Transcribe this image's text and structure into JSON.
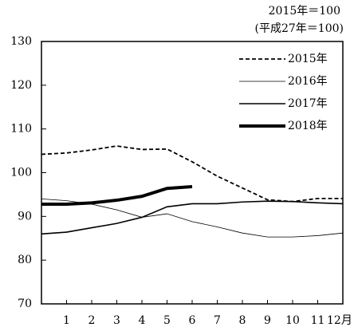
{
  "chart_data": {
    "type": "line",
    "annotations": [
      "2015年＝100",
      "(平成27年＝100)"
    ],
    "x": [
      0,
      1,
      2,
      3,
      4,
      5,
      6,
      7,
      8,
      9,
      10,
      11,
      12
    ],
    "xlim": [
      0,
      12
    ],
    "xticks": [
      1,
      2,
      3,
      4,
      5,
      6,
      7,
      8,
      9,
      10,
      11,
      {
        "value": 12,
        "label": "12月"
      }
    ],
    "ylim": [
      70,
      130
    ],
    "yticks": [
      70,
      80,
      90,
      100,
      110,
      120,
      130
    ],
    "grid": false,
    "legend": "upper right",
    "series": [
      {
        "name": "2015年",
        "color": "#000000",
        "dash": true,
        "width": 1.8,
        "values": [
          104.2,
          104.5,
          105.2,
          106.1,
          105.3,
          105.4,
          102.5,
          99.2,
          96.5,
          93.8,
          93.4,
          94.1,
          94.1
        ]
      },
      {
        "name": "2016年",
        "color": "#000000",
        "dash": false,
        "width": 0.8,
        "values": [
          94.0,
          93.6,
          92.8,
          91.5,
          89.8,
          90.6,
          88.8,
          87.6,
          86.2,
          85.3,
          85.3,
          85.6,
          86.2
        ]
      },
      {
        "name": "2017年",
        "color": "#000000",
        "dash": false,
        "width": 1.6,
        "values": [
          86.0,
          86.4,
          87.4,
          88.4,
          89.8,
          92.2,
          92.9,
          92.9,
          93.3,
          93.5,
          93.4,
          93.1,
          92.9
        ]
      },
      {
        "name": "2018年",
        "color": "#000000",
        "dash": false,
        "width": 4,
        "values": [
          92.8,
          92.8,
          93.1,
          93.7,
          94.6,
          96.4,
          96.8,
          null,
          null,
          null,
          null,
          null,
          null
        ]
      }
    ]
  }
}
